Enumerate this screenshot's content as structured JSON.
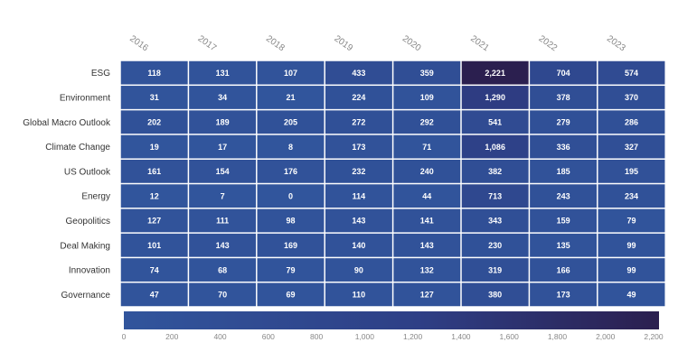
{
  "chart_data": {
    "type": "heatmap",
    "columns": [
      "2016",
      "2017",
      "2018",
      "2019",
      "2020",
      "2021",
      "2022",
      "2023"
    ],
    "rows": [
      "ESG",
      "Environment",
      "Global Macro Outlook",
      "Climate Change",
      "US Outlook",
      "Energy",
      "Geopolitics",
      "Deal Making",
      "Innovation",
      "Governance"
    ],
    "values": [
      [
        118,
        131,
        107,
        433,
        359,
        2221,
        704,
        574
      ],
      [
        31,
        34,
        21,
        224,
        109,
        1290,
        378,
        370
      ],
      [
        202,
        189,
        205,
        272,
        292,
        541,
        279,
        286
      ],
      [
        19,
        17,
        8,
        173,
        71,
        1086,
        336,
        327
      ],
      [
        161,
        154,
        176,
        232,
        240,
        382,
        185,
        195
      ],
      [
        12,
        7,
        0,
        114,
        44,
        713,
        243,
        234
      ],
      [
        127,
        111,
        98,
        143,
        141,
        343,
        159,
        79
      ],
      [
        101,
        143,
        169,
        140,
        143,
        230,
        135,
        99
      ],
      [
        74,
        68,
        79,
        90,
        132,
        319,
        166,
        99
      ],
      [
        47,
        70,
        69,
        110,
        127,
        380,
        173,
        49
      ]
    ],
    "color_scale": {
      "min": 0,
      "max": 2200,
      "ticks": [
        0,
        200,
        400,
        600,
        800,
        1000,
        1200,
        1400,
        1600,
        1800,
        2000,
        2200
      ],
      "colors": [
        "#31559c",
        "#2e3f86",
        "#2b1f4f"
      ]
    },
    "legend_placement": "bottom"
  }
}
